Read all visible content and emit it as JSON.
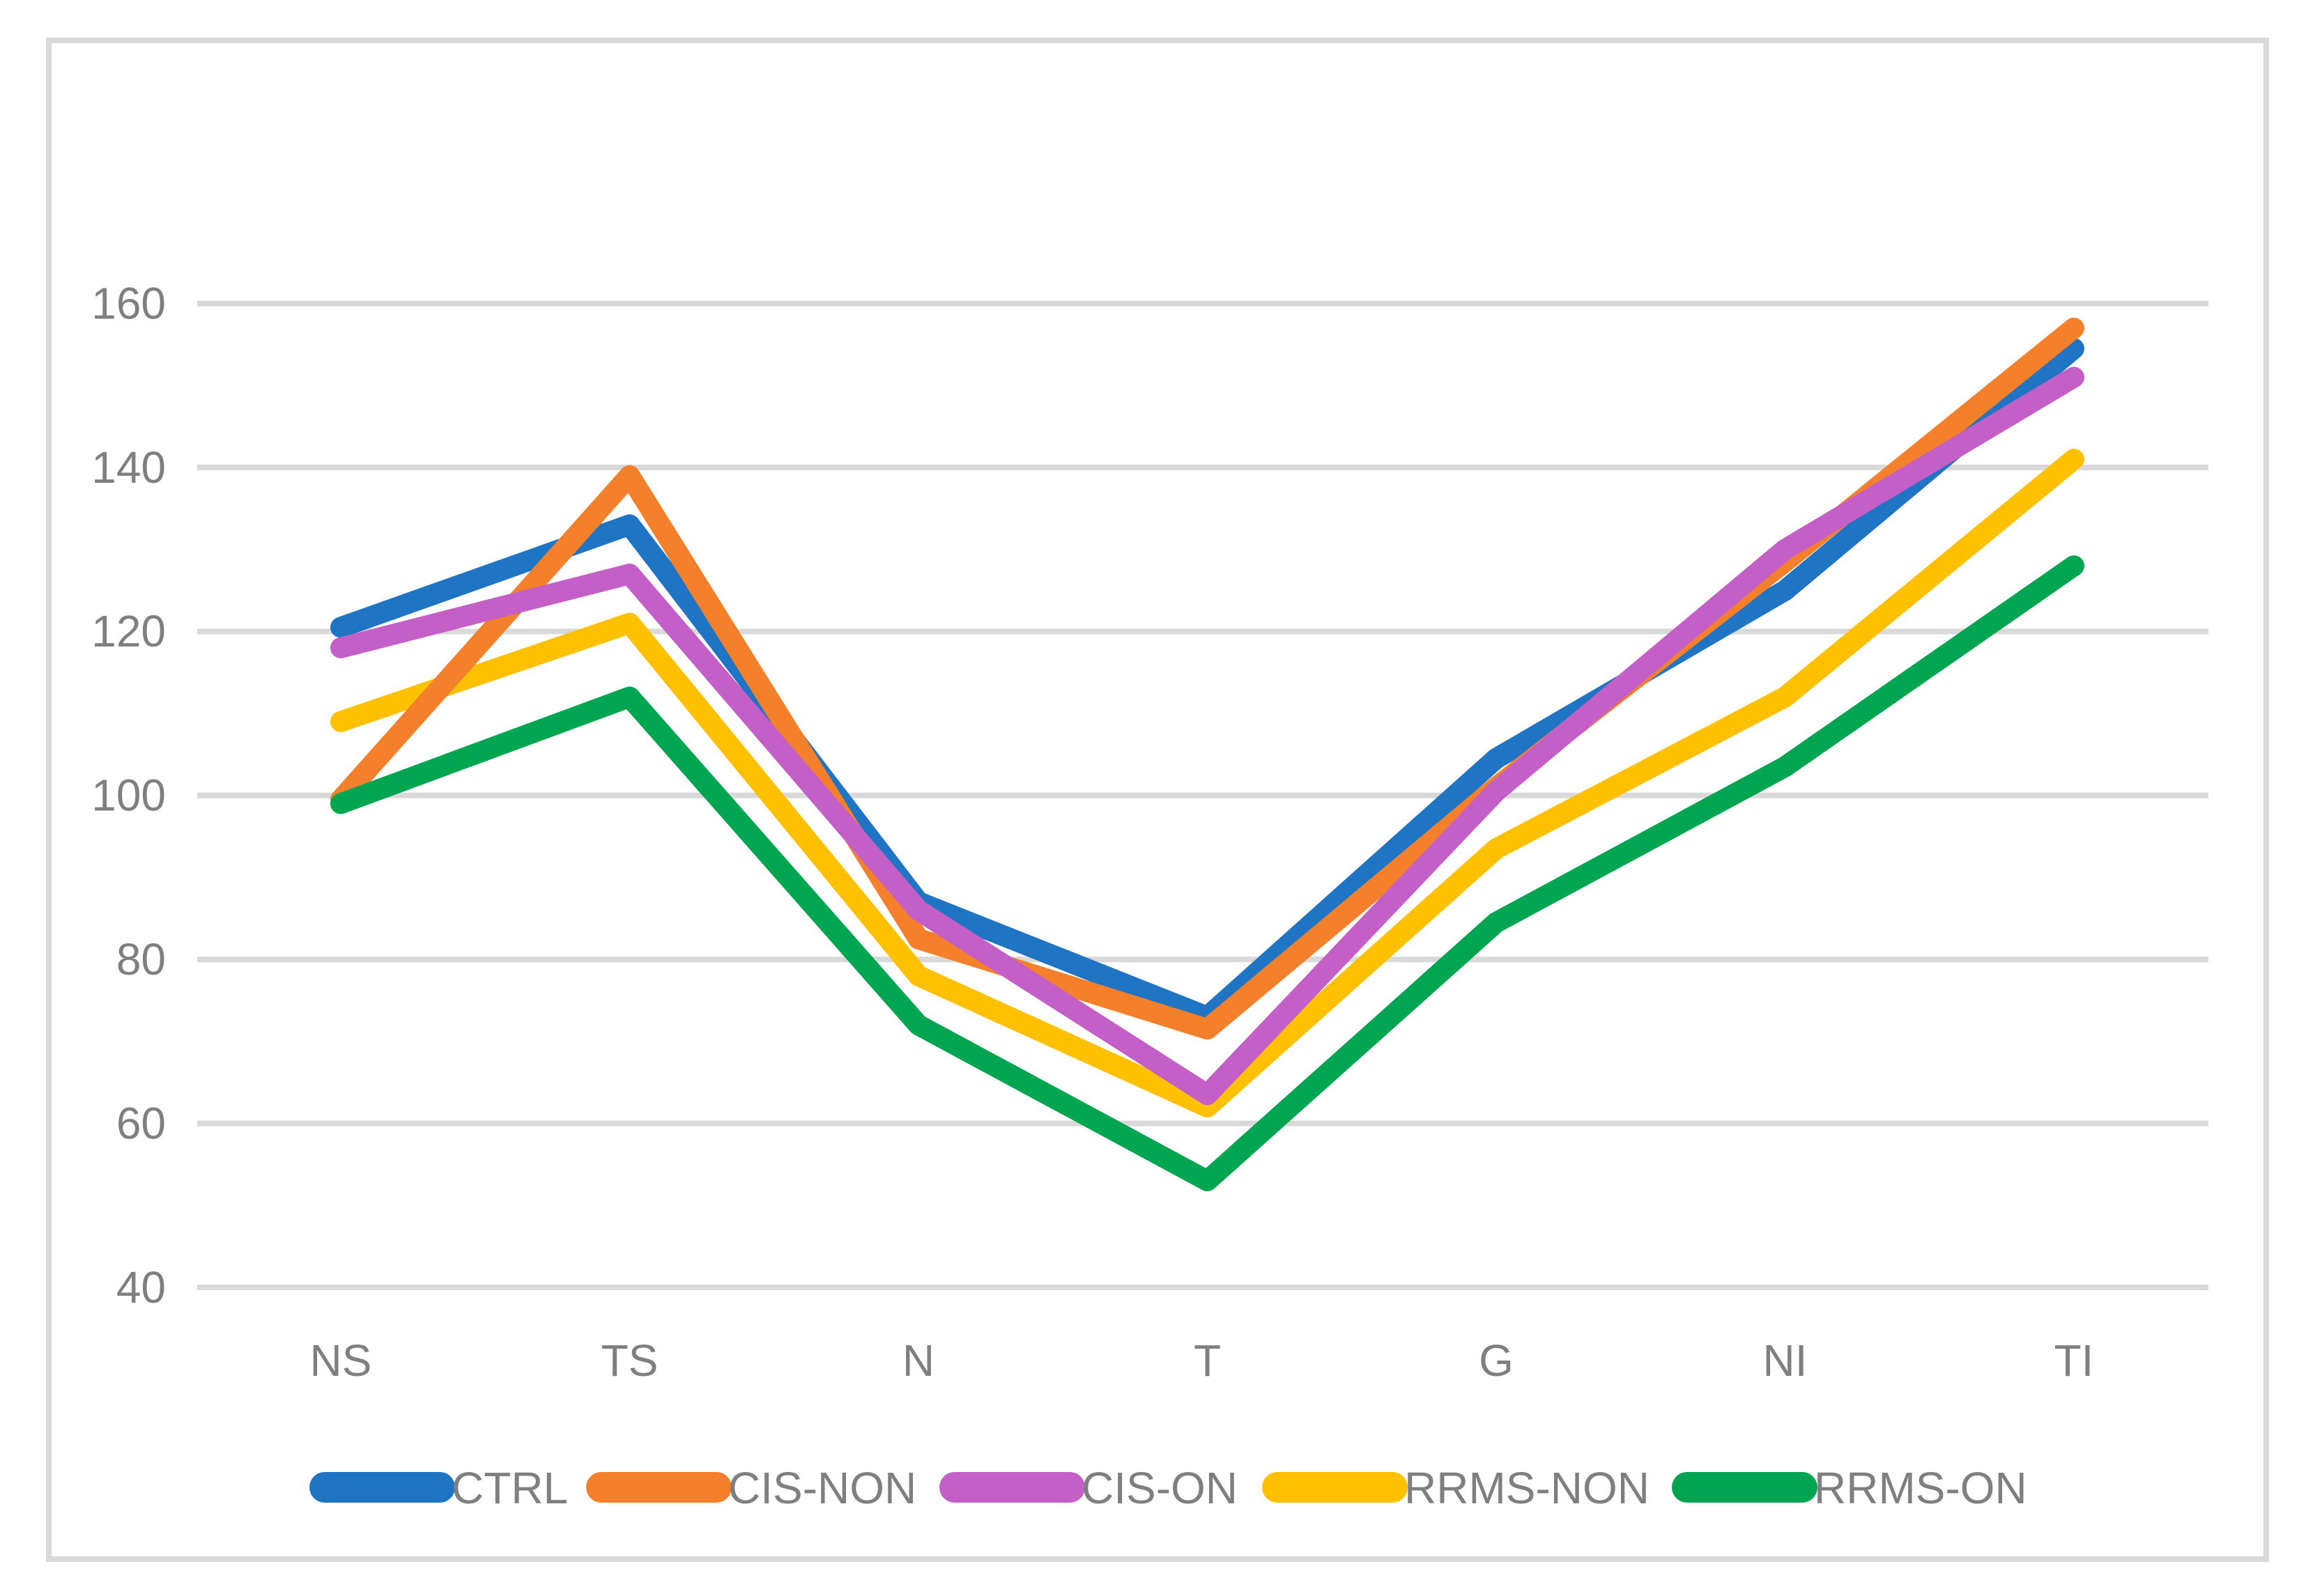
{
  "chart_data": {
    "type": "line",
    "title": "",
    "xlabel": "",
    "ylabel": "",
    "categories": [
      "NS",
      "TS",
      "N",
      "T",
      "G",
      "NI",
      "TI"
    ],
    "series": [
      {
        "name": "CTRL",
        "color": "#1F74C4",
        "values": [
          120.5,
          133.0,
          87.0,
          73.0,
          104.5,
          125.0,
          154.5
        ]
      },
      {
        "name": "CIS-NON",
        "color": "#F5802B",
        "values": [
          99.5,
          139.0,
          82.5,
          71.5,
          101.0,
          128.5,
          157.0
        ]
      },
      {
        "name": "CIS-ON",
        "color": "#C35FC7",
        "values": [
          118.0,
          127.0,
          86.0,
          63.5,
          100.5,
          130.0,
          151.0
        ]
      },
      {
        "name": "RRMS-NON",
        "color": "#FFC000",
        "values": [
          109.0,
          121.0,
          78.0,
          62.0,
          93.5,
          112.0,
          141.0
        ]
      },
      {
        "name": "RRMS-ON",
        "color": "#00A551",
        "values": [
          99.0,
          112.0,
          72.0,
          53.0,
          84.5,
          103.5,
          128.0
        ]
      }
    ],
    "y_ticks": [
      40,
      60,
      80,
      100,
      120,
      140,
      160
    ],
    "ylim": [
      40,
      170
    ],
    "grid": true,
    "legend_position": "bottom",
    "grid_color": "#D9D9D9",
    "frame_color": "#D9D9D9",
    "text_color": "#7F7F7F"
  }
}
